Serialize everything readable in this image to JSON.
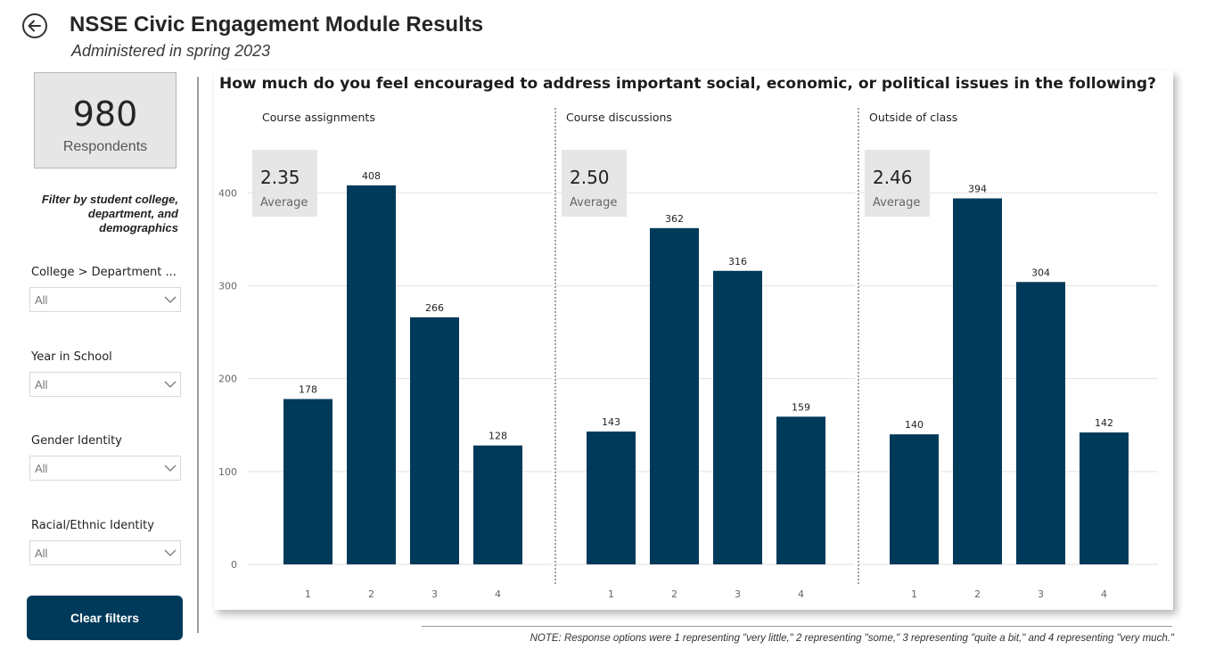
{
  "header": {
    "title": "NSSE Civic Engagement Module Results",
    "subtitle": "Administered in spring 2023",
    "back_icon": "circle-arrow-left-icon"
  },
  "kpi": {
    "value": "980",
    "label": "Respondents"
  },
  "filters": {
    "intro": "Filter by student college, department, and demographics",
    "slicers": [
      {
        "label": "College > Department ...",
        "value": "All"
      },
      {
        "label": "Year in School",
        "value": "All"
      },
      {
        "label": "Gender Identity",
        "value": "All"
      },
      {
        "label": "Racial/Ethnic Identity",
        "value": "All"
      }
    ],
    "clear_label": "Clear filters"
  },
  "colors": {
    "bar": "#003a5a",
    "accent": "#003a5a",
    "avg_card": "#e6e6e6"
  },
  "chart_data": {
    "type": "bar",
    "title": "How much do you feel encouraged to address important social, economic, or political issues in the following?",
    "ylim": [
      0,
      430
    ],
    "yticks": [
      0,
      100,
      200,
      300,
      400
    ],
    "categories": [
      "1",
      "2",
      "3",
      "4"
    ],
    "panels": [
      {
        "name": "Course assignments",
        "average": "2.35",
        "average_label": "Average",
        "values": [
          178,
          408,
          266,
          128
        ]
      },
      {
        "name": "Course discussions",
        "average": "2.50",
        "average_label": "Average",
        "values": [
          143,
          362,
          316,
          159
        ]
      },
      {
        "name": "Outside of class",
        "average": "2.46",
        "average_label": "Average",
        "values": [
          140,
          394,
          304,
          142
        ]
      }
    ]
  },
  "note": "NOTE: Response options were 1 representing \"very little,\" 2 representing \"some,\" 3 representing \"quite a bit,\" and 4 representing \"very much.\""
}
